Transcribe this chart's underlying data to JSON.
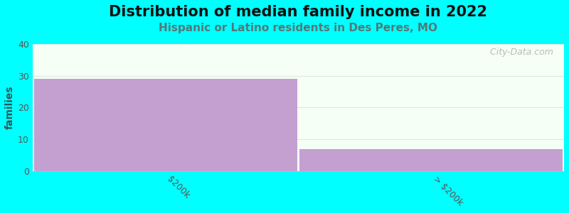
{
  "title": "Distribution of median family income in 2022",
  "subtitle": "Hispanic or Latino residents in Des Peres, MO",
  "categories": [
    "$200k",
    "> $200k"
  ],
  "values": [
    29,
    7
  ],
  "bar_color": "#c4a0d0",
  "background_color": "#00ffff",
  "plot_bg_top": "#f5fff5",
  "plot_bg_bottom": "#eefff0",
  "ylabel": "families",
  "ylim": [
    0,
    40
  ],
  "yticks": [
    0,
    10,
    20,
    30,
    40
  ],
  "title_fontsize": 15,
  "subtitle_fontsize": 11,
  "subtitle_color": "#557777",
  "watermark": "  City-Data.com",
  "watermark_color": "#aaaaaa",
  "grid_color": "#e0e8e0",
  "tick_color": "#555555",
  "ylabel_color": "#335555",
  "ylabel_fontsize": 10,
  "xtick_fontsize": 9
}
